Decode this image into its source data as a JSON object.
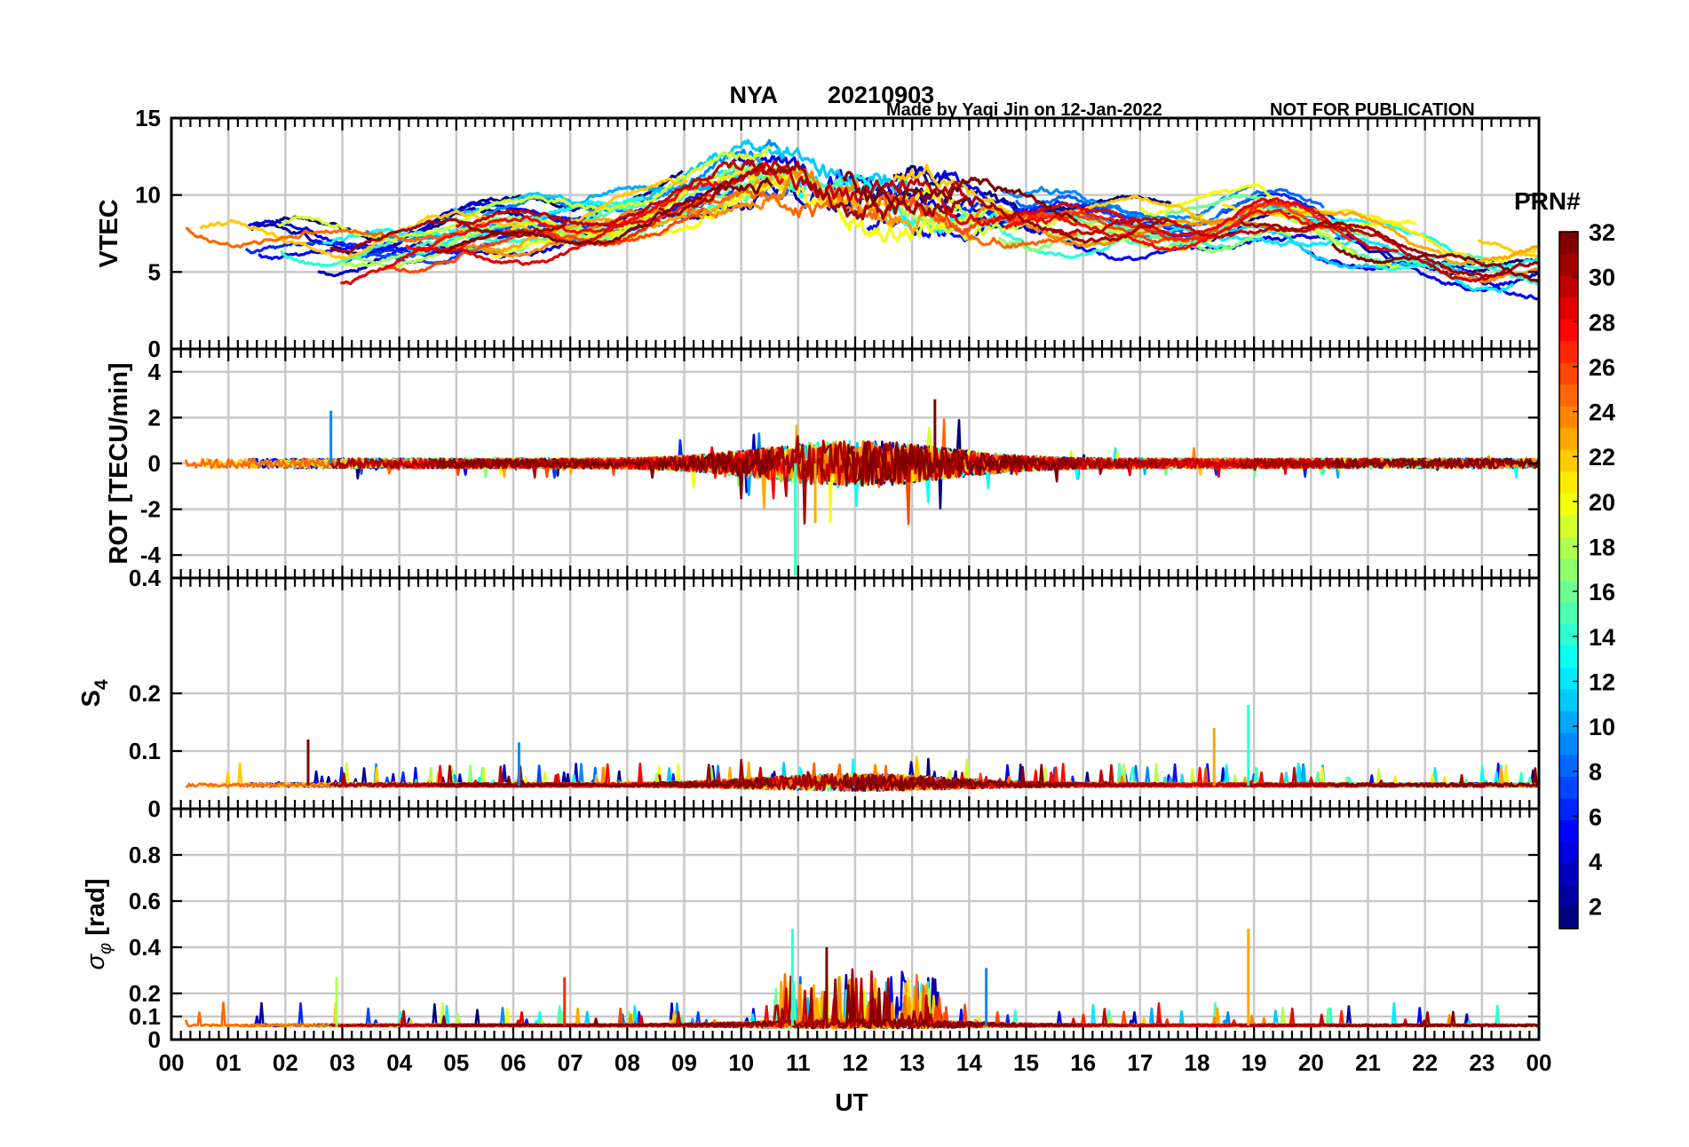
{
  "header": {
    "station": "NYA",
    "date": "20210903",
    "credit": "Made by Yaqi Jin on 12-Jan-2022",
    "notice": "NOT FOR PUBLICATION"
  },
  "colors": {
    "title": "#e81919",
    "credit": "#1010e0",
    "grid": "#c8c8c8"
  },
  "chart_data": [
    {
      "type": "line",
      "panel": "vtec",
      "ylabel": "VTEC",
      "ylim": [
        0,
        15
      ],
      "yticks": [
        "0",
        "5",
        "10",
        "15"
      ],
      "ytick_values": [
        0,
        5,
        10,
        15
      ],
      "xlim": [
        0,
        24
      ],
      "series_note": "One line per GPS satellite PRN 1-32, colored by PRN (jet colormap)",
      "levels": [
        {
          "t": 0,
          "v": 7
        },
        {
          "t": 2,
          "v": 6.5
        },
        {
          "t": 3,
          "v": 6
        },
        {
          "t": 5,
          "v": 7.5
        },
        {
          "t": 7,
          "v": 8
        },
        {
          "t": 9,
          "v": 10
        },
        {
          "t": 10.5,
          "v": 11.5
        },
        {
          "t": 12,
          "v": 10
        },
        {
          "t": 14,
          "v": 9
        },
        {
          "t": 16,
          "v": 8
        },
        {
          "t": 18,
          "v": 8
        },
        {
          "t": 19,
          "v": 9
        },
        {
          "t": 21,
          "v": 7
        },
        {
          "t": 23,
          "v": 5.5
        },
        {
          "t": 24,
          "v": 5.5
        }
      ]
    },
    {
      "type": "line",
      "panel": "rot",
      "ylabel": "ROT [TECU/min]",
      "ylim": [
        -5,
        5
      ],
      "yticks": [
        "-4",
        "-2",
        "0",
        "2",
        "4"
      ],
      "ytick_values": [
        -4,
        -2,
        0,
        2,
        4
      ],
      "xlim": [
        0,
        24
      ],
      "typical_spread": 0.6,
      "spikes": [
        {
          "t": 10.95,
          "v": -4.9
        },
        {
          "t": 11.3,
          "v": -2.6
        },
        {
          "t": 13.4,
          "v": 2.8
        },
        {
          "t": 2.8,
          "v": 2.3
        }
      ]
    },
    {
      "type": "line",
      "panel": "s4",
      "ylabel": "S",
      "ylabel_sub": "4",
      "ylim": [
        0,
        0.4
      ],
      "top_tick_label": "0.4",
      "yticks": [
        "0",
        "0.1",
        "0.2"
      ],
      "ytick_values": [
        0,
        0.1,
        0.2
      ],
      "xlim": [
        0,
        24
      ],
      "baseline": 0.04,
      "spikes": [
        {
          "t": 18.9,
          "v": 0.18
        },
        {
          "t": 18.3,
          "v": 0.14
        },
        {
          "t": 2.4,
          "v": 0.12
        },
        {
          "t": 6.1,
          "v": 0.115
        }
      ]
    },
    {
      "type": "line",
      "panel": "sigma_phi",
      "ylabel": "σ",
      "ylabel_sub": "φ",
      "ylabel_unit": "[rad]",
      "ylim": [
        0,
        1
      ],
      "yticks": [
        "0",
        "0.1",
        "0.2",
        "0.4",
        "0.6",
        "0.8"
      ],
      "ytick_values": [
        0,
        0.1,
        0.2,
        0.4,
        0.6,
        0.8
      ],
      "xlim": [
        0,
        24
      ],
      "baseline": 0.06,
      "spikes": [
        {
          "t": 10.9,
          "v": 0.48
        },
        {
          "t": 18.9,
          "v": 0.48
        },
        {
          "t": 11.5,
          "v": 0.4
        },
        {
          "t": 14.3,
          "v": 0.31
        },
        {
          "t": 2.9,
          "v": 0.27
        },
        {
          "t": 6.9,
          "v": 0.27
        }
      ]
    }
  ],
  "xaxis": {
    "label": "UT",
    "tick_labels": [
      "00",
      "01",
      "02",
      "03",
      "04",
      "05",
      "06",
      "07",
      "08",
      "09",
      "10",
      "11",
      "12",
      "13",
      "14",
      "15",
      "16",
      "17",
      "18",
      "19",
      "20",
      "21",
      "22",
      "23",
      "00"
    ]
  },
  "colorbar": {
    "label": "PRN#",
    "min": 1,
    "max": 32,
    "tick_labels": [
      "2",
      "4",
      "6",
      "8",
      "10",
      "12",
      "14",
      "16",
      "18",
      "20",
      "22",
      "24",
      "26",
      "28",
      "30",
      "32"
    ],
    "tick_values": [
      2,
      4,
      6,
      8,
      10,
      12,
      14,
      16,
      18,
      20,
      22,
      24,
      26,
      28,
      30,
      32
    ],
    "colormap": "jet"
  }
}
